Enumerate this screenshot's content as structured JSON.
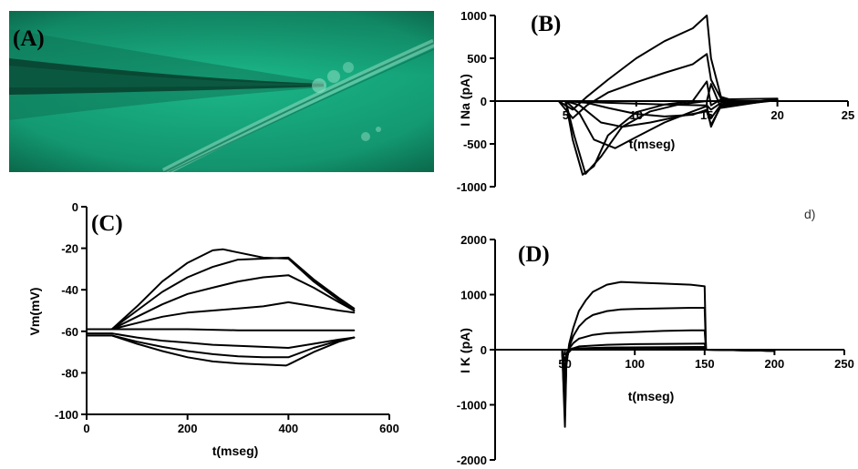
{
  "colors": {
    "micrograph_background": "#16a57c",
    "micrograph_dark": "#0b5a40",
    "trace": "#000000"
  },
  "chart_data": [
    {
      "id": "A",
      "type": "image",
      "panel_label": "(A)",
      "description_icon": "micrograph-pipette-cell"
    },
    {
      "id": "B",
      "type": "line",
      "panel_label": "(B)",
      "xlabel": "t(mseg)",
      "ylabel": "I Na (pA)",
      "xlim": [
        0,
        25
      ],
      "ylim": [
        -1000,
        1000
      ],
      "xticks": [
        5,
        10,
        15,
        20,
        25
      ],
      "xtick_labels": [
        "5",
        "10",
        "15",
        "20",
        "25"
      ],
      "yticks": [
        -1000,
        -500,
        0,
        500,
        1000
      ],
      "ytick_labels": [
        "-1000",
        "-500",
        "0",
        "500",
        "1000"
      ],
      "grid": false,
      "series": [
        {
          "x": [
            0,
            4.5,
            5.5,
            6.5,
            8,
            10,
            12,
            14,
            15,
            15.3,
            16,
            17,
            20
          ],
          "y": [
            0,
            0,
            -100,
            50,
            250,
            500,
            700,
            850,
            1000,
            500,
            50,
            0,
            0
          ]
        },
        {
          "x": [
            0,
            4.5,
            5.5,
            6.5,
            8,
            10,
            12,
            14,
            15,
            15.3,
            16,
            17,
            20
          ],
          "y": [
            0,
            0,
            -200,
            -50,
            100,
            220,
            330,
            430,
            550,
            250,
            30,
            0,
            0
          ]
        },
        {
          "x": [
            0,
            5,
            5.5,
            6.2,
            7,
            8,
            10,
            12,
            14,
            15,
            15.3,
            16,
            20
          ],
          "y": [
            0,
            0,
            -450,
            -860,
            -760,
            -400,
            -130,
            -40,
            0,
            230,
            -50,
            20,
            30
          ]
        },
        {
          "x": [
            0,
            5,
            5.6,
            6.4,
            7.5,
            9,
            11,
            13,
            15,
            15.3,
            16,
            20
          ],
          "y": [
            0,
            0,
            -400,
            -850,
            -650,
            -300,
            -120,
            -40,
            0,
            200,
            -80,
            20
          ]
        },
        {
          "x": [
            0,
            5,
            6,
            7,
            8.5,
            10,
            12,
            14,
            15,
            15.3,
            16,
            20
          ],
          "y": [
            0,
            0,
            -150,
            -450,
            -550,
            -420,
            -250,
            -120,
            -60,
            -300,
            -50,
            20
          ]
        },
        {
          "x": [
            0,
            5,
            6,
            7.5,
            9,
            11,
            13,
            15,
            15.3,
            16,
            20
          ],
          "y": [
            0,
            0,
            -50,
            -250,
            -300,
            -250,
            -180,
            -120,
            -280,
            -60,
            10
          ]
        },
        {
          "x": [
            0,
            5,
            6.5,
            8,
            10,
            12,
            14,
            15,
            15.3,
            16,
            20
          ],
          "y": [
            0,
            0,
            -20,
            -80,
            -150,
            -180,
            -160,
            -100,
            -200,
            -40,
            10
          ]
        },
        {
          "x": [
            0,
            5,
            8,
            12,
            15,
            15.3,
            16,
            20
          ],
          "y": [
            0,
            0,
            -20,
            -40,
            -50,
            -100,
            -20,
            10
          ]
        }
      ]
    },
    {
      "id": "C",
      "type": "line",
      "panel_label": "(C)",
      "xlabel": "t(mseg)",
      "ylabel": "Vm(mV)",
      "xlim": [
        0,
        600
      ],
      "ylim": [
        -100,
        0
      ],
      "xticks": [
        0,
        200,
        400,
        600
      ],
      "xtick_labels": [
        "0",
        "200",
        "400",
        "600"
      ],
      "yticks": [
        -100,
        -80,
        -60,
        -40,
        -20,
        0
      ],
      "ytick_labels": [
        "-100",
        "-80",
        "-60",
        "-40",
        "-20",
        "0"
      ],
      "grid": false,
      "series": [
        {
          "x": [
            0,
            50,
            100,
            150,
            200,
            250,
            270,
            300,
            350,
            400,
            450,
            500,
            530
          ],
          "y": [
            -59,
            -59,
            -48,
            -36,
            -27,
            -21,
            -20.5,
            -22,
            -24.5,
            -25,
            -36,
            -45,
            -50
          ]
        },
        {
          "x": [
            0,
            50,
            100,
            150,
            200,
            250,
            300,
            350,
            400,
            450,
            500,
            530
          ],
          "y": [
            -59,
            -59,
            -50,
            -41,
            -34,
            -29,
            -25.5,
            -25,
            -24.5,
            -35,
            -44,
            -49
          ]
        },
        {
          "x": [
            0,
            50,
            100,
            150,
            200,
            250,
            300,
            350,
            400,
            450,
            500,
            530
          ],
          "y": [
            -59,
            -59,
            -53,
            -47,
            -42,
            -39,
            -36,
            -34,
            -33,
            -39,
            -46,
            -50
          ]
        },
        {
          "x": [
            0,
            50,
            100,
            150,
            200,
            250,
            300,
            350,
            400,
            450,
            500,
            530
          ],
          "y": [
            -59,
            -59,
            -56,
            -53,
            -51,
            -50,
            -49,
            -48,
            -46,
            -48,
            -50,
            -51
          ]
        },
        {
          "x": [
            0,
            50,
            100,
            200,
            300,
            400,
            450,
            530
          ],
          "y": [
            -59,
            -59,
            -59,
            -59,
            -59.5,
            -59.5,
            -59.5,
            -59.5
          ]
        },
        {
          "x": [
            0,
            50,
            100,
            150,
            200,
            250,
            300,
            350,
            400,
            450,
            500,
            530
          ],
          "y": [
            -61,
            -61,
            -63,
            -64.5,
            -65.5,
            -66.5,
            -67,
            -67.5,
            -68,
            -66,
            -64,
            -63
          ]
        },
        {
          "x": [
            0,
            50,
            100,
            150,
            200,
            250,
            300,
            350,
            400,
            450,
            500,
            530
          ],
          "y": [
            -62,
            -62,
            -65,
            -67.5,
            -69.5,
            -71,
            -72,
            -72.5,
            -72.5,
            -68,
            -64.5,
            -63
          ]
        },
        {
          "x": [
            0,
            50,
            100,
            150,
            200,
            250,
            300,
            350,
            395,
            400,
            450,
            500,
            530
          ],
          "y": [
            -62,
            -62,
            -66,
            -69.5,
            -72.5,
            -74.5,
            -75.5,
            -76,
            -76.5,
            -76,
            -70,
            -65,
            -63
          ]
        }
      ]
    },
    {
      "id": "D",
      "type": "line",
      "panel_label": "(D)",
      "xlabel": "t(mseg)",
      "ylabel": "I K (pA)",
      "xlim": [
        0,
        250
      ],
      "ylim": [
        -2000,
        2000
      ],
      "xticks": [
        50,
        100,
        150,
        200,
        250
      ],
      "xtick_labels": [
        "50",
        "100",
        "150",
        "200",
        "250"
      ],
      "yticks": [
        -2000,
        -1000,
        0,
        1000,
        2000
      ],
      "ytick_labels": [
        "-2000",
        "-1000",
        "0",
        "1000",
        "2000"
      ],
      "grid": false,
      "series": [
        {
          "x": [
            0,
            48,
            50,
            51,
            53,
            56,
            60,
            65,
            70,
            80,
            90,
            100,
            120,
            140,
            150,
            151,
            160,
            200
          ],
          "y": [
            0,
            0,
            -1400,
            -300,
            100,
            400,
            700,
            900,
            1050,
            1180,
            1230,
            1220,
            1200,
            1180,
            1150,
            0,
            0,
            -20
          ]
        },
        {
          "x": [
            0,
            48,
            50,
            51,
            53,
            56,
            60,
            65,
            70,
            80,
            90,
            100,
            120,
            140,
            150,
            151,
            160,
            200
          ],
          "y": [
            0,
            0,
            -1200,
            -250,
            50,
            250,
            420,
            550,
            630,
            700,
            730,
            740,
            750,
            760,
            760,
            0,
            0,
            -20
          ]
        },
        {
          "x": [
            0,
            48,
            50,
            51,
            53,
            56,
            60,
            70,
            80,
            100,
            120,
            140,
            150,
            151,
            160,
            200
          ],
          "y": [
            0,
            0,
            -1000,
            -200,
            20,
            120,
            200,
            270,
            300,
            320,
            340,
            350,
            350,
            0,
            0,
            -20
          ]
        },
        {
          "x": [
            0,
            48,
            50,
            51,
            53,
            60,
            80,
            100,
            150,
            151,
            200
          ],
          "y": [
            0,
            0,
            -800,
            -150,
            0,
            60,
            90,
            100,
            110,
            0,
            -20
          ]
        },
        {
          "x": [
            0,
            48,
            50,
            51,
            55,
            80,
            150,
            151,
            200
          ],
          "y": [
            0,
            0,
            -600,
            -100,
            20,
            40,
            50,
            0,
            -20
          ]
        },
        {
          "x": [
            0,
            48,
            50,
            51,
            55,
            150,
            151,
            200
          ],
          "y": [
            0,
            0,
            -400,
            -80,
            10,
            20,
            0,
            -20
          ]
        },
        {
          "x": [
            0,
            48,
            50,
            52,
            150,
            200
          ],
          "y": [
            0,
            0,
            -200,
            0,
            0,
            -20
          ]
        }
      ]
    }
  ],
  "side_annotation": "d)"
}
